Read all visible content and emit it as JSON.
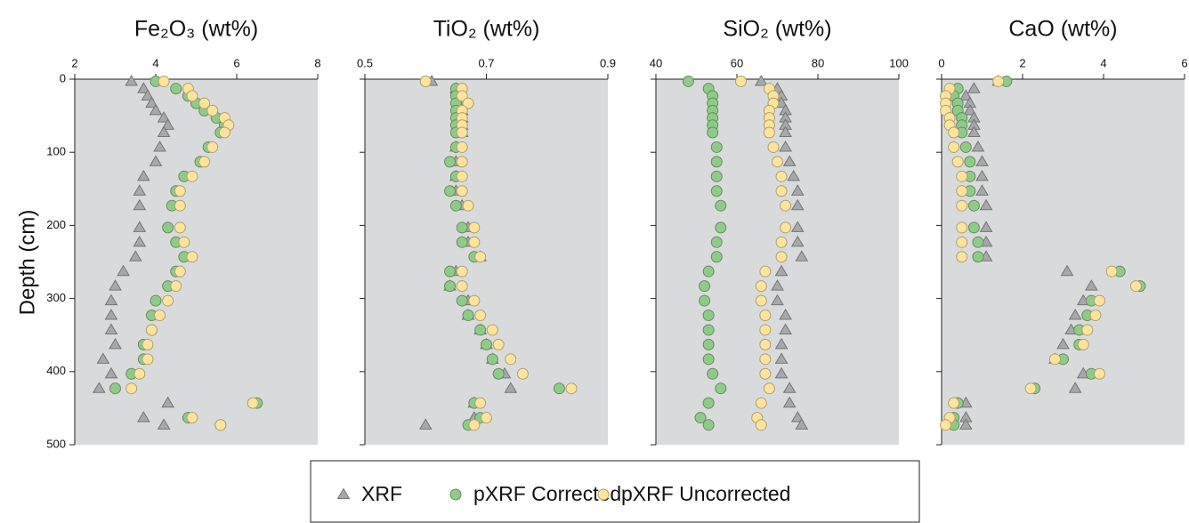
{
  "chart_data": [
    {
      "type": "scatter",
      "title": "Fe₂O₃ (wt%)",
      "y_label": "Depth (cm)",
      "xlim": [
        2,
        8
      ],
      "xticks": [
        2,
        4,
        6,
        8
      ],
      "ylim": [
        0,
        500
      ],
      "yticks": [
        0,
        100,
        200,
        300,
        400,
        500
      ],
      "y_inverted": true,
      "y_tick_labels": true,
      "y": [
        3,
        13,
        23,
        33,
        43,
        53,
        63,
        73,
        93,
        113,
        133,
        153,
        173,
        203,
        223,
        243,
        263,
        283,
        303,
        323,
        343,
        363,
        383,
        403,
        423,
        443,
        463,
        473
      ],
      "series": [
        {
          "name": "XRF",
          "color": "#a7a8aa",
          "marker": "triangle",
          "x": [
            3.4,
            3.7,
            3.8,
            3.9,
            4.0,
            4.2,
            4.3,
            4.2,
            4.1,
            4.0,
            3.7,
            3.6,
            3.6,
            3.6,
            3.6,
            3.5,
            3.2,
            3.0,
            2.9,
            2.9,
            2.9,
            3.0,
            2.7,
            2.9,
            2.6,
            4.3,
            3.7,
            4.2
          ]
        },
        {
          "name": "pXRF Corrected",
          "color": "#8fcb88",
          "marker": "circle",
          "x": [
            4.0,
            4.5,
            4.8,
            5.0,
            5.2,
            5.5,
            5.7,
            5.6,
            5.3,
            5.1,
            4.7,
            4.5,
            4.4,
            4.3,
            4.5,
            4.7,
            4.5,
            4.3,
            4.0,
            3.9,
            3.9,
            3.7,
            3.7,
            3.4,
            3.0,
            6.5,
            4.8,
            5.6
          ]
        },
        {
          "name": "pXRF Uncorrected",
          "color": "#fde39c",
          "marker": "circle",
          "x": [
            4.2,
            4.8,
            4.9,
            5.2,
            5.4,
            5.7,
            5.8,
            5.7,
            5.4,
            5.2,
            4.9,
            4.6,
            4.6,
            4.6,
            4.7,
            4.9,
            4.6,
            4.5,
            4.3,
            4.1,
            3.9,
            3.8,
            3.8,
            3.6,
            3.4,
            6.4,
            4.9,
            5.6
          ]
        }
      ]
    },
    {
      "type": "scatter",
      "title": "TiO₂ (wt%)",
      "xlim": [
        0.5,
        0.9
      ],
      "xticks": [
        0.5,
        0.7,
        0.9
      ],
      "ylim": [
        0,
        500
      ],
      "yticks": [
        0,
        100,
        200,
        300,
        400,
        500
      ],
      "y_inverted": true,
      "y_tick_labels": false,
      "y": [
        3,
        13,
        23,
        33,
        43,
        53,
        63,
        73,
        93,
        113,
        133,
        153,
        173,
        203,
        223,
        243,
        263,
        283,
        303,
        323,
        343,
        363,
        383,
        403,
        423,
        443,
        463,
        473
      ],
      "series": [
        {
          "name": "XRF",
          "color": "#a7a8aa",
          "marker": "triangle",
          "x": [
            0.61,
            0.65,
            0.66,
            0.66,
            0.66,
            0.66,
            0.66,
            0.66,
            0.65,
            0.65,
            0.65,
            0.65,
            0.66,
            0.67,
            0.67,
            0.69,
            0.65,
            0.64,
            0.67,
            0.67,
            0.69,
            0.7,
            0.71,
            0.73,
            0.74,
            0.68,
            0.68,
            0.6
          ]
        },
        {
          "name": "pXRF Corrected",
          "color": "#8fcb88",
          "marker": "circle",
          "x": [
            0.6,
            0.65,
            0.65,
            0.65,
            0.65,
            0.65,
            0.65,
            0.65,
            0.65,
            0.64,
            0.65,
            0.64,
            0.65,
            0.66,
            0.66,
            0.68,
            0.64,
            0.64,
            0.66,
            0.67,
            0.69,
            0.7,
            0.71,
            0.72,
            0.82,
            0.68,
            0.69,
            0.67
          ]
        },
        {
          "name": "pXRF Uncorrected",
          "color": "#fde39c",
          "marker": "circle",
          "x": [
            0.6,
            0.66,
            0.66,
            0.67,
            0.66,
            0.66,
            0.66,
            0.66,
            0.66,
            0.66,
            0.66,
            0.66,
            0.67,
            0.68,
            0.68,
            0.69,
            0.66,
            0.66,
            0.68,
            0.69,
            0.71,
            0.72,
            0.74,
            0.76,
            0.84,
            0.69,
            0.7,
            0.68
          ]
        }
      ]
    },
    {
      "type": "scatter",
      "title": "SiO₂ (wt%)",
      "xlim": [
        40,
        100
      ],
      "xticks": [
        40,
        60,
        80,
        100
      ],
      "ylim": [
        0,
        500
      ],
      "yticks": [
        0,
        100,
        200,
        300,
        400,
        500
      ],
      "y_inverted": true,
      "y_tick_labels": false,
      "y": [
        3,
        13,
        23,
        33,
        43,
        53,
        63,
        73,
        93,
        113,
        133,
        153,
        173,
        203,
        223,
        243,
        263,
        283,
        303,
        323,
        343,
        363,
        383,
        403,
        423,
        443,
        463,
        473
      ],
      "series": [
        {
          "name": "XRF",
          "color": "#a7a8aa",
          "marker": "triangle",
          "x": [
            66,
            70,
            71,
            71,
            72,
            72,
            72,
            72,
            72,
            73,
            74,
            75,
            75,
            75,
            75,
            76,
            71,
            70,
            70,
            72,
            72,
            71,
            71,
            71,
            73,
            73,
            75,
            76
          ]
        },
        {
          "name": "pXRF Corrected",
          "color": "#8fcb88",
          "marker": "circle",
          "x": [
            48,
            53,
            54,
            54,
            54,
            54,
            54,
            54,
            55,
            55,
            55,
            55,
            56,
            56,
            55,
            55,
            53,
            52,
            52,
            53,
            53,
            53,
            53,
            54,
            56,
            53,
            51,
            53
          ]
        },
        {
          "name": "pXRF Uncorrected",
          "color": "#fde39c",
          "marker": "circle",
          "x": [
            61,
            68,
            69,
            69,
            68,
            68,
            68,
            68,
            69,
            70,
            71,
            71,
            72,
            72,
            71,
            71,
            67,
            66,
            66,
            67,
            67,
            67,
            67,
            67,
            68,
            66,
            65,
            66
          ]
        }
      ]
    },
    {
      "type": "scatter",
      "title": "CaO (wt%)",
      "xlim": [
        0,
        6
      ],
      "xticks": [
        0,
        2,
        4,
        6
      ],
      "ylim": [
        0,
        500
      ],
      "yticks": [
        0,
        100,
        200,
        300,
        400,
        500
      ],
      "y_inverted": true,
      "y_tick_labels": false,
      "y": [
        3,
        13,
        23,
        33,
        43,
        53,
        63,
        73,
        93,
        113,
        133,
        153,
        173,
        203,
        223,
        243,
        263,
        283,
        303,
        323,
        343,
        363,
        383,
        403,
        423,
        443,
        463,
        473
      ],
      "series": [
        {
          "name": "XRF",
          "color": "#a7a8aa",
          "marker": "triangle",
          "x": [
            1.4,
            0.8,
            0.6,
            0.7,
            0.7,
            0.8,
            0.8,
            0.8,
            0.9,
            1.0,
            1.0,
            1.0,
            1.1,
            1.1,
            1.1,
            1.1,
            3.1,
            3.7,
            3.5,
            3.3,
            3.2,
            3.0,
            2.8,
            3.5,
            3.3,
            0.6,
            0.6,
            0.6
          ]
        },
        {
          "name": "pXRF Corrected",
          "color": "#8fcb88",
          "marker": "circle",
          "x": [
            1.6,
            0.4,
            0.3,
            0.4,
            0.4,
            0.5,
            0.5,
            0.5,
            0.6,
            0.7,
            0.7,
            0.7,
            0.8,
            0.8,
            0.9,
            0.9,
            4.4,
            4.9,
            3.7,
            3.6,
            3.4,
            3.4,
            3.0,
            3.7,
            2.3,
            0.4,
            0.3,
            0.3
          ]
        },
        {
          "name": "pXRF Uncorrected",
          "color": "#fde39c",
          "marker": "circle",
          "x": [
            1.4,
            0.2,
            0.1,
            0.1,
            0.1,
            0.2,
            0.2,
            0.3,
            0.3,
            0.4,
            0.5,
            0.5,
            0.5,
            0.5,
            0.5,
            0.5,
            4.2,
            4.8,
            3.9,
            3.8,
            3.6,
            3.5,
            2.8,
            3.9,
            2.2,
            0.3,
            0.2,
            0.1
          ]
        }
      ]
    }
  ]
}
